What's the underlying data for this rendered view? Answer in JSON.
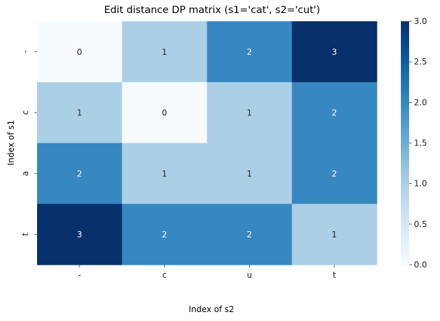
{
  "chart_data": {
    "type": "heatmap",
    "title": "Edit distance DP matrix (s1='cat', s2='cut')",
    "xlabel": "Index of s2",
    "ylabel": "Index of s1",
    "x_categories": [
      "-",
      "c",
      "u",
      "t"
    ],
    "y_categories": [
      "-",
      "c",
      "a",
      "t"
    ],
    "values": [
      [
        0,
        1,
        2,
        3
      ],
      [
        1,
        0,
        1,
        2
      ],
      [
        2,
        1,
        1,
        2
      ],
      [
        3,
        2,
        2,
        1
      ]
    ],
    "annotated": true,
    "colormap": "Blues",
    "vmin": 0,
    "vmax": 3,
    "colorbar": {
      "ticks": [
        "0.0",
        "0.5",
        "1.0",
        "1.5",
        "2.0",
        "2.5",
        "3.0"
      ],
      "tick_values": [
        0,
        0.5,
        1,
        1.5,
        2,
        2.5,
        3
      ]
    }
  },
  "colors": {
    "blues_stops": [
      "#f7fbff",
      "#deebf7",
      "#c6dbef",
      "#9ecae1",
      "#6baed6",
      "#4292c6",
      "#2171b5",
      "#08519c",
      "#08306b"
    ],
    "text_dark": "#262626",
    "text_light": "#ffffff"
  }
}
